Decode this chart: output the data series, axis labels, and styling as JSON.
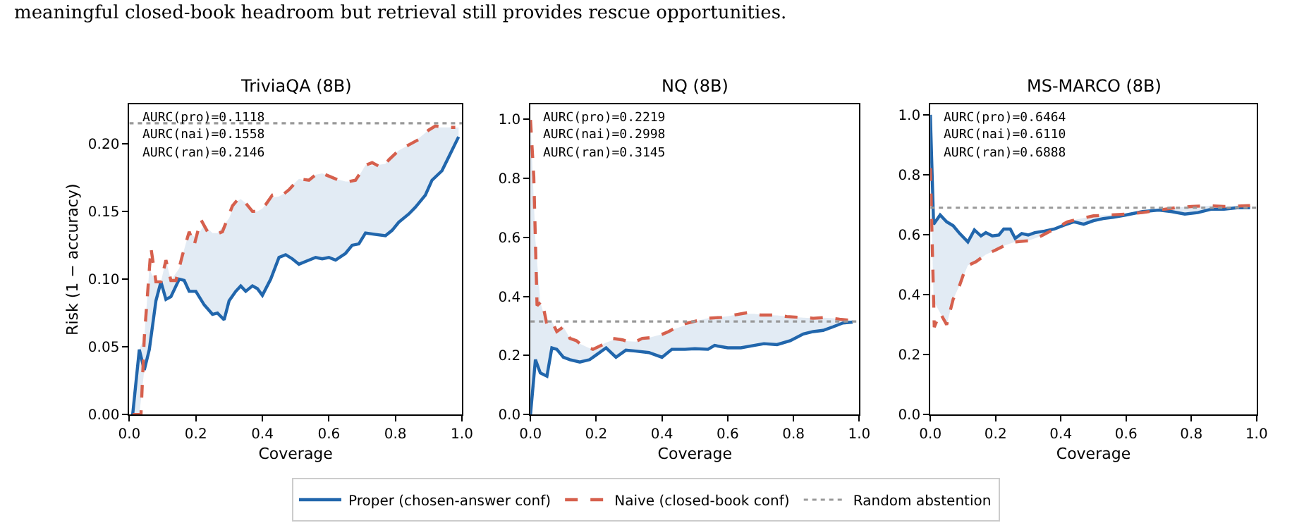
{
  "chart_data": [
    {
      "type": "line",
      "title": "TriviaQA (8B)",
      "xlabel": "Coverage",
      "ylabel": "Risk (1 − accuracy)",
      "legend": "bottom",
      "annotations": [
        "meaningful closed-book headroom but retrieval still provides rescue opportunities.",
        "AURC(pro)=0.1118",
        "AURC(nai)=0.1558",
        "AURC(ran)=0.2146"
      ],
      "xlim": [
        0,
        1
      ],
      "ylim": [
        0,
        0.229
      ],
      "xticks": [
        {
          "value": 0,
          "label": "0.0"
        },
        {
          "value": 0.2,
          "label": "0.2"
        },
        {
          "value": 0.4,
          "label": "0.4"
        },
        {
          "value": 0.6,
          "label": "0.6"
        },
        {
          "value": 0.8,
          "label": "0.8"
        },
        {
          "value": 1,
          "label": "1.0"
        }
      ],
      "yticks": [
        {
          "value": 0,
          "label": "0.00"
        },
        {
          "value": 0.05,
          "label": "0.05"
        },
        {
          "value": 0.1,
          "label": "0.10"
        },
        {
          "value": 0.15,
          "label": "0.15"
        },
        {
          "value": 0.2,
          "label": "0.20"
        }
      ],
      "series": [
        {
          "name": "Proper (chosen-answer conf)",
          "color": "#2166ac",
          "line_style": "solid",
          "x": [
            0.01,
            0.03,
            0.045,
            0.06,
            0.08,
            0.095,
            0.11,
            0.125,
            0.15,
            0.165,
            0.18,
            0.2,
            0.225,
            0.25,
            0.265,
            0.285,
            0.3,
            0.32,
            0.335,
            0.35,
            0.37,
            0.385,
            0.4,
            0.425,
            0.45,
            0.47,
            0.49,
            0.51,
            0.53,
            0.56,
            0.58,
            0.6,
            0.62,
            0.65,
            0.67,
            0.69,
            0.71,
            0.74,
            0.77,
            0.79,
            0.81,
            0.84,
            0.86,
            0.89,
            0.91,
            0.94,
            0.96,
            0.99
          ],
          "values": [
            0,
            0.048,
            0.033,
            0.048,
            0.084,
            0.098,
            0.085,
            0.087,
            0.1,
            0.099,
            0.091,
            0.091,
            0.081,
            0.074,
            0.075,
            0.07,
            0.084,
            0.091,
            0.095,
            0.091,
            0.095,
            0.093,
            0.088,
            0.1,
            0.116,
            0.118,
            0.115,
            0.111,
            0.113,
            0.116,
            0.115,
            0.116,
            0.114,
            0.119,
            0.125,
            0.126,
            0.134,
            0.133,
            0.132,
            0.136,
            0.142,
            0.148,
            0.153,
            0.162,
            0.173,
            0.18,
            0.19,
            0.205
          ],
          "lower": [
            0,
            0,
            0.033,
            0.048,
            0.084,
            0.098,
            0.085,
            0.087,
            0.1,
            0.099,
            0.091,
            0.091,
            0.081,
            0.074,
            0.075,
            0.07,
            0.084,
            0.091,
            0.095,
            0.091,
            0.095,
            0.093,
            0.088,
            0.1,
            0.116,
            0.118,
            0.115,
            0.111,
            0.113,
            0.116,
            0.115,
            0.116,
            0.114,
            0.119,
            0.125,
            0.126,
            0.134,
            0.133,
            0.132,
            0.136,
            0.142,
            0.148,
            0.153,
            0.162,
            0.173,
            0.18,
            0.19,
            0.205
          ],
          "upper": [
            0,
            0.048,
            0.057,
            0.107,
            0.098,
            0.098,
            0.114,
            0.099,
            0.108,
            0.122,
            0.135,
            0.13,
            0.14,
            0.134,
            0.134,
            0.14,
            0.145,
            0.157,
            0.159,
            0.156,
            0.15,
            0.15,
            0.152,
            0.16,
            0.161,
            0.164,
            0.169,
            0.174,
            0.173,
            0.177,
            0.178,
            0.176,
            0.174,
            0.172,
            0.172,
            0.176,
            0.184,
            0.184,
            0.185,
            0.191,
            0.195,
            0.199,
            0.202,
            0.208,
            0.212,
            0.212,
            0.212,
            0.212
          ]
        },
        {
          "name": "Naive (closed-book conf)",
          "color": "#d6604d",
          "line_style": "dashed",
          "x": [
            0.01,
            0.035,
            0.045,
            0.065,
            0.08,
            0.095,
            0.11,
            0.125,
            0.14,
            0.16,
            0.18,
            0.195,
            0.215,
            0.235,
            0.26,
            0.28,
            0.31,
            0.33,
            0.35,
            0.37,
            0.39,
            0.41,
            0.43,
            0.455,
            0.48,
            0.51,
            0.54,
            0.57,
            0.6,
            0.63,
            0.66,
            0.68,
            0.71,
            0.73,
            0.76,
            0.78,
            0.81,
            0.84,
            0.87,
            0.9,
            0.92,
            0.95,
            0.98
          ],
          "values": [
            0,
            0,
            0.057,
            0.123,
            0.098,
            0.098,
            0.114,
            0.099,
            0.099,
            0.118,
            0.135,
            0.125,
            0.144,
            0.135,
            0.133,
            0.135,
            0.154,
            0.16,
            0.156,
            0.15,
            0.15,
            0.155,
            0.162,
            0.161,
            0.166,
            0.174,
            0.173,
            0.179,
            0.176,
            0.173,
            0.172,
            0.173,
            0.184,
            0.186,
            0.182,
            0.188,
            0.195,
            0.199,
            0.203,
            0.21,
            0.213,
            0.212,
            0.212
          ]
        },
        {
          "name": "Random abstention",
          "color": "#999999",
          "line_style": "dotted",
          "x": [
            0,
            1
          ],
          "values": [
            0.215,
            0.215
          ]
        }
      ]
    },
    {
      "type": "line",
      "title": "NQ (8B)",
      "xlabel": "Coverage",
      "annotations": [
        "AURC(pro)=0.2219",
        "AURC(nai)=0.2998",
        "AURC(ran)=0.3145"
      ],
      "xlim": [
        0,
        1
      ],
      "ylim": [
        0,
        1.05
      ],
      "xticks": [
        {
          "value": 0,
          "label": "0.0"
        },
        {
          "value": 0.2,
          "label": "0.2"
        },
        {
          "value": 0.4,
          "label": "0.4"
        },
        {
          "value": 0.6,
          "label": "0.6"
        },
        {
          "value": 0.8,
          "label": "0.8"
        },
        {
          "value": 1,
          "label": "1.0"
        }
      ],
      "yticks": [
        {
          "value": 0,
          "label": "0.0"
        },
        {
          "value": 0.2,
          "label": "0.2"
        },
        {
          "value": 0.4,
          "label": "0.4"
        },
        {
          "value": 0.6,
          "label": "0.6"
        },
        {
          "value": 0.8,
          "label": "0.8"
        },
        {
          "value": 1,
          "label": "1.0"
        }
      ],
      "series": [
        {
          "color": "#2166ac",
          "line_style": "solid",
          "x": [
            0,
            0.015,
            0.03,
            0.05,
            0.065,
            0.08,
            0.1,
            0.12,
            0.15,
            0.18,
            0.2,
            0.23,
            0.26,
            0.29,
            0.32,
            0.36,
            0.4,
            0.43,
            0.47,
            0.5,
            0.54,
            0.56,
            0.6,
            0.64,
            0.68,
            0.71,
            0.75,
            0.79,
            0.83,
            0.86,
            0.89,
            0.92,
            0.95,
            0.98
          ],
          "values": [
            0,
            0.186,
            0.141,
            0.13,
            0.226,
            0.221,
            0.194,
            0.186,
            0.178,
            0.186,
            0.202,
            0.226,
            0.194,
            0.218,
            0.215,
            0.21,
            0.194,
            0.221,
            0.221,
            0.223,
            0.221,
            0.234,
            0.226,
            0.226,
            0.234,
            0.24,
            0.237,
            0.25,
            0.273,
            0.281,
            0.285,
            0.297,
            0.31,
            0.313
          ],
          "lower": [
            0,
            0.186,
            0.141,
            0.13,
            0.226,
            0.221,
            0.194,
            0.186,
            0.178,
            0.186,
            0.202,
            0.226,
            0.194,
            0.218,
            0.215,
            0.21,
            0.194,
            0.221,
            0.221,
            0.223,
            0.221,
            0.234,
            0.226,
            0.226,
            0.234,
            0.24,
            0.237,
            0.25,
            0.273,
            0.281,
            0.285,
            0.297,
            0.31,
            0.313
          ],
          "upper": [
            0.997,
            0.59,
            0.38,
            0.305,
            0.316,
            0.281,
            0.297,
            0.258,
            0.24,
            0.224,
            0.226,
            0.244,
            0.256,
            0.249,
            0.247,
            0.26,
            0.272,
            0.287,
            0.302,
            0.316,
            0.326,
            0.327,
            0.333,
            0.341,
            0.341,
            0.337,
            0.336,
            0.331,
            0.328,
            0.326,
            0.328,
            0.326,
            0.322,
            0.318
          ]
        },
        {
          "color": "#d6604d",
          "line_style": "dashed",
          "x": [
            0,
            0.01,
            0.02,
            0.035,
            0.05,
            0.065,
            0.08,
            0.1,
            0.12,
            0.14,
            0.16,
            0.19,
            0.22,
            0.25,
            0.28,
            0.31,
            0.34,
            0.38,
            0.42,
            0.46,
            0.5,
            0.54,
            0.58,
            0.62,
            0.66,
            0.7,
            0.74,
            0.78,
            0.82,
            0.86,
            0.9,
            0.94,
            0.98
          ],
          "values": [
            0.997,
            0.806,
            0.369,
            0.385,
            0.305,
            0.316,
            0.281,
            0.297,
            0.258,
            0.25,
            0.231,
            0.221,
            0.237,
            0.258,
            0.253,
            0.242,
            0.258,
            0.262,
            0.281,
            0.305,
            0.316,
            0.326,
            0.329,
            0.337,
            0.345,
            0.337,
            0.337,
            0.332,
            0.329,
            0.326,
            0.329,
            0.323,
            0.318
          ]
        },
        {
          "color": "#999999",
          "line_style": "dotted",
          "x": [
            0,
            1
          ],
          "values": [
            0.315,
            0.315
          ]
        }
      ]
    },
    {
      "type": "line",
      "title": "MS-MARCO (8B)",
      "xlabel": "Coverage",
      "annotations": [
        "AURC(pro)=0.6464",
        "AURC(nai)=0.6110",
        "AURC(ran)=0.6888"
      ],
      "xlim": [
        0,
        1
      ],
      "ylim": [
        0,
        1.035
      ],
      "xticks": [
        {
          "value": 0,
          "label": "0.0"
        },
        {
          "value": 0.2,
          "label": "0.2"
        },
        {
          "value": 0.4,
          "label": "0.4"
        },
        {
          "value": 0.6,
          "label": "0.6"
        },
        {
          "value": 0.8,
          "label": "0.8"
        },
        {
          "value": 1,
          "label": "1.0"
        }
      ],
      "yticks": [
        {
          "value": 0,
          "label": "0.0"
        },
        {
          "value": 0.2,
          "label": "0.2"
        },
        {
          "value": 0.4,
          "label": "0.4"
        },
        {
          "value": 0.6,
          "label": "0.6"
        },
        {
          "value": 0.8,
          "label": "0.8"
        },
        {
          "value": 1,
          "label": "1.0"
        }
      ],
      "series": [
        {
          "color": "#2166ac",
          "line_style": "solid",
          "x": [
            0,
            0.01,
            0.03,
            0.05,
            0.07,
            0.09,
            0.115,
            0.135,
            0.155,
            0.17,
            0.19,
            0.21,
            0.225,
            0.245,
            0.26,
            0.28,
            0.3,
            0.32,
            0.35,
            0.38,
            0.41,
            0.44,
            0.47,
            0.5,
            0.53,
            0.56,
            0.6,
            0.65,
            0.7,
            0.74,
            0.78,
            0.82,
            0.86,
            0.9,
            0.94,
            0.98
          ],
          "values": [
            1.0,
            0.635,
            0.666,
            0.643,
            0.63,
            0.604,
            0.576,
            0.616,
            0.596,
            0.607,
            0.596,
            0.599,
            0.619,
            0.619,
            0.588,
            0.604,
            0.599,
            0.607,
            0.612,
            0.619,
            0.632,
            0.643,
            0.635,
            0.647,
            0.654,
            0.658,
            0.666,
            0.677,
            0.682,
            0.677,
            0.669,
            0.674,
            0.685,
            0.685,
            0.69,
            0.69
          ],
          "lower": [
            0.822,
            0.38,
            0.339,
            0.3,
            0.385,
            0.432,
            0.498,
            0.508,
            0.522,
            0.534,
            0.544,
            0.554,
            0.563,
            0.571,
            0.576,
            0.578,
            0.58,
            0.588,
            0.6,
            0.619,
            0.632,
            0.643,
            0.635,
            0.647,
            0.654,
            0.658,
            0.666,
            0.674,
            0.682,
            0.677,
            0.669,
            0.674,
            0.685,
            0.685,
            0.69,
            0.69
          ],
          "upper": [
            1.0,
            0.635,
            0.666,
            0.643,
            0.63,
            0.604,
            0.576,
            0.616,
            0.596,
            0.607,
            0.596,
            0.599,
            0.619,
            0.619,
            0.588,
            0.604,
            0.599,
            0.607,
            0.612,
            0.619,
            0.637,
            0.649,
            0.656,
            0.663,
            0.665,
            0.666,
            0.669,
            0.677,
            0.682,
            0.688,
            0.693,
            0.695,
            0.697,
            0.694,
            0.696,
            0.697
          ]
        },
        {
          "color": "#d6604d",
          "line_style": "dashed",
          "x": [
            0,
            0.012,
            0.03,
            0.05,
            0.07,
            0.09,
            0.11,
            0.14,
            0.17,
            0.2,
            0.23,
            0.26,
            0.3,
            0.34,
            0.38,
            0.42,
            0.46,
            0.5,
            0.55,
            0.6,
            0.65,
            0.7,
            0.75,
            0.8,
            0.85,
            0.9,
            0.98
          ],
          "values": [
            0.822,
            0.292,
            0.339,
            0.3,
            0.385,
            0.432,
            0.495,
            0.51,
            0.534,
            0.549,
            0.565,
            0.576,
            0.58,
            0.596,
            0.619,
            0.643,
            0.654,
            0.663,
            0.666,
            0.669,
            0.674,
            0.682,
            0.69,
            0.694,
            0.697,
            0.694,
            0.697
          ]
        },
        {
          "color": "#999999",
          "line_style": "dotted",
          "x": [
            0,
            1
          ],
          "values": [
            0.69,
            0.69
          ]
        }
      ]
    }
  ]
}
